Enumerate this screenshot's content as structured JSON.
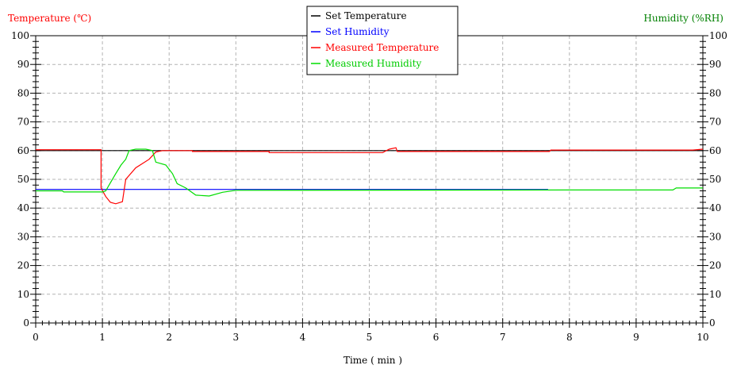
{
  "chart_data": {
    "type": "line",
    "left_axis_label": "Temperature (℃)",
    "right_axis_label": "Humidity (%RH)",
    "xlabel": "Time ( min )",
    "xlim": [
      0,
      10
    ],
    "ylim_left": [
      0,
      100
    ],
    "ylim_right": [
      0,
      100
    ],
    "x_ticks": [
      0,
      1,
      2,
      3,
      4,
      5,
      6,
      7,
      8,
      9,
      10
    ],
    "y_ticks": [
      0,
      10,
      20,
      30,
      40,
      50,
      60,
      70,
      80,
      90,
      100
    ],
    "grid": true,
    "legend_position": "top-center",
    "axis_colors": {
      "left": "#ff0000",
      "right": "#008000"
    },
    "series": [
      {
        "name": "Set Temperature",
        "color": "#000000",
        "points": [
          [
            0,
            60
          ],
          [
            10,
            60
          ]
        ]
      },
      {
        "name": "Set Humidity",
        "color": "#0000ff",
        "points": [
          [
            0,
            46.5
          ],
          [
            7.68,
            46.5
          ]
        ]
      },
      {
        "name": "Measured Temperature",
        "color": "#ff0000",
        "points": [
          [
            0,
            60.3
          ],
          [
            0.98,
            60.3
          ],
          [
            0.98,
            47
          ],
          [
            1.05,
            44
          ],
          [
            1.12,
            42
          ],
          [
            1.2,
            41.5
          ],
          [
            1.3,
            42.2
          ],
          [
            1.35,
            50
          ],
          [
            1.5,
            54
          ],
          [
            1.7,
            57
          ],
          [
            1.8,
            59.5
          ],
          [
            1.9,
            60
          ],
          [
            2.35,
            60
          ],
          [
            2.35,
            59.7
          ],
          [
            3.5,
            59.7
          ],
          [
            3.5,
            59.3
          ],
          [
            5.2,
            59.3
          ],
          [
            5.3,
            60.5
          ],
          [
            5.4,
            61
          ],
          [
            5.42,
            59.7
          ],
          [
            7.7,
            59.7
          ],
          [
            7.72,
            60.2
          ],
          [
            9.85,
            60.2
          ],
          [
            10,
            60.5
          ]
        ]
      },
      {
        "name": "Measured Humidity",
        "color": "#00dd00",
        "points": [
          [
            0,
            46
          ],
          [
            0.4,
            46
          ],
          [
            0.42,
            45.6
          ],
          [
            1.0,
            45.6
          ],
          [
            1.05,
            46
          ],
          [
            1.1,
            48
          ],
          [
            1.2,
            52
          ],
          [
            1.28,
            55
          ],
          [
            1.35,
            57
          ],
          [
            1.4,
            60
          ],
          [
            1.5,
            60.5
          ],
          [
            1.65,
            60.5
          ],
          [
            1.75,
            60
          ],
          [
            1.8,
            56
          ],
          [
            1.95,
            55
          ],
          [
            2.05,
            52
          ],
          [
            2.12,
            48.5
          ],
          [
            2.25,
            47
          ],
          [
            2.4,
            44.5
          ],
          [
            2.6,
            44.2
          ],
          [
            2.8,
            45.5
          ],
          [
            3.0,
            46.2
          ],
          [
            8.0,
            46.3
          ],
          [
            9.0,
            46.3
          ],
          [
            9.55,
            46.3
          ],
          [
            9.6,
            47
          ],
          [
            10,
            47
          ]
        ]
      }
    ]
  }
}
